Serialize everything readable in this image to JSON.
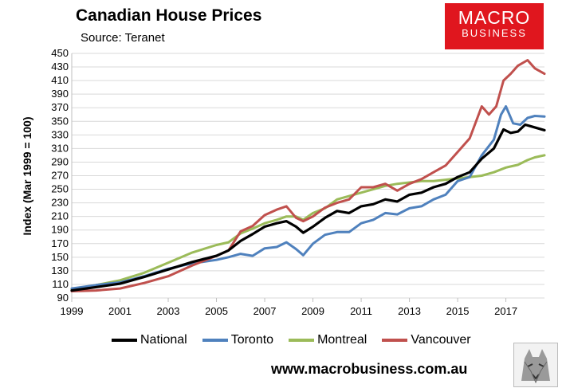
{
  "header": {
    "title": "Canadian House Prices",
    "source": "Source: Teranet"
  },
  "logo": {
    "line1": "MACRO",
    "line2": "BUSINESS"
  },
  "footer": {
    "website": "www.macrobusiness.com.au"
  },
  "colors": {
    "National": "#000000",
    "Toronto": "#4f81bd",
    "Montreal": "#9bbb59",
    "Vancouver": "#c0504d",
    "grid": "#d9d9d9",
    "logo_bg": "#e0161e"
  },
  "chart_data": {
    "type": "line",
    "title": "Canadian House Prices",
    "subtitle": "Source: Teranet",
    "xlabel": "",
    "ylabel": "Index (Mar 1999 = 100)",
    "xlim": [
      1999,
      2018.6
    ],
    "ylim": [
      90,
      450
    ],
    "xticks": [
      1999,
      2001,
      2003,
      2005,
      2007,
      2009,
      2011,
      2013,
      2015,
      2017
    ],
    "yticks": [
      90,
      110,
      130,
      150,
      170,
      190,
      210,
      230,
      250,
      270,
      290,
      310,
      330,
      350,
      370,
      390,
      410,
      430,
      450
    ],
    "grid": "horizontal",
    "legend": "bottom",
    "series": [
      {
        "name": "National",
        "x": [
          1999.0,
          2000.0,
          2001.0,
          2002.0,
          2003.0,
          2004.0,
          2005.0,
          2005.5,
          2006.0,
          2006.5,
          2007.0,
          2007.5,
          2007.9,
          2008.3,
          2008.6,
          2009.0,
          2009.5,
          2010.0,
          2010.5,
          2011.0,
          2011.5,
          2012.0,
          2012.5,
          2013.0,
          2013.5,
          2014.0,
          2014.5,
          2015.0,
          2015.5,
          2016.0,
          2016.5,
          2016.9,
          2017.2,
          2017.5,
          2017.8,
          2018.0,
          2018.3,
          2018.6
        ],
        "values": [
          101,
          106,
          111,
          121,
          132,
          143,
          152,
          160,
          174,
          184,
          195,
          200,
          203,
          195,
          186,
          195,
          208,
          218,
          215,
          225,
          228,
          235,
          232,
          242,
          245,
          253,
          258,
          268,
          275,
          295,
          310,
          338,
          333,
          335,
          345,
          343,
          340,
          337
        ]
      },
      {
        "name": "Toronto",
        "x": [
          1999.0,
          2000.0,
          2001.0,
          2002.0,
          2003.0,
          2004.0,
          2005.0,
          2005.5,
          2006.0,
          2006.5,
          2007.0,
          2007.5,
          2007.9,
          2008.3,
          2008.6,
          2009.0,
          2009.5,
          2010.0,
          2010.5,
          2011.0,
          2011.5,
          2012.0,
          2012.5,
          2013.0,
          2013.5,
          2014.0,
          2014.5,
          2015.0,
          2015.5,
          2016.0,
          2016.5,
          2016.8,
          2017.0,
          2017.3,
          2017.6,
          2017.9,
          2018.2,
          2018.6
        ],
        "values": [
          104,
          109,
          113,
          122,
          133,
          141,
          146,
          150,
          155,
          152,
          163,
          165,
          172,
          162,
          153,
          170,
          183,
          187,
          187,
          200,
          205,
          215,
          213,
          222,
          225,
          235,
          242,
          262,
          268,
          300,
          323,
          360,
          372,
          347,
          345,
          355,
          358,
          357
        ]
      },
      {
        "name": "Montreal",
        "x": [
          1999.0,
          2000.0,
          2001.0,
          2002.0,
          2003.0,
          2004.0,
          2005.0,
          2005.5,
          2006.0,
          2006.5,
          2007.0,
          2007.5,
          2007.9,
          2008.3,
          2008.6,
          2009.0,
          2009.5,
          2010.0,
          2010.5,
          2011.0,
          2011.5,
          2012.0,
          2012.5,
          2013.0,
          2013.5,
          2014.0,
          2014.5,
          2015.0,
          2015.5,
          2016.0,
          2016.5,
          2017.0,
          2017.5,
          2017.9,
          2018.2,
          2018.6
        ],
        "values": [
          103,
          109,
          116,
          127,
          142,
          157,
          168,
          172,
          185,
          192,
          200,
          205,
          210,
          210,
          205,
          215,
          222,
          235,
          240,
          245,
          250,
          255,
          258,
          260,
          262,
          262,
          264,
          266,
          268,
          270,
          275,
          282,
          286,
          293,
          297,
          300
        ]
      },
      {
        "name": "Vancouver",
        "x": [
          1999.0,
          2000.0,
          2001.0,
          2002.0,
          2003.0,
          2004.0,
          2005.0,
          2005.5,
          2006.0,
          2006.5,
          2007.0,
          2007.5,
          2007.9,
          2008.3,
          2008.6,
          2009.0,
          2009.5,
          2010.0,
          2010.5,
          2011.0,
          2011.5,
          2012.0,
          2012.5,
          2013.0,
          2013.5,
          2014.0,
          2014.5,
          2015.0,
          2015.5,
          2016.0,
          2016.3,
          2016.6,
          2016.9,
          2017.2,
          2017.5,
          2017.9,
          2018.2,
          2018.6
        ],
        "values": [
          100,
          101,
          104,
          112,
          122,
          138,
          152,
          160,
          188,
          196,
          212,
          220,
          225,
          208,
          203,
          210,
          223,
          230,
          235,
          253,
          253,
          258,
          248,
          258,
          265,
          275,
          285,
          305,
          325,
          372,
          360,
          372,
          410,
          420,
          432,
          440,
          428,
          420
        ]
      }
    ]
  }
}
